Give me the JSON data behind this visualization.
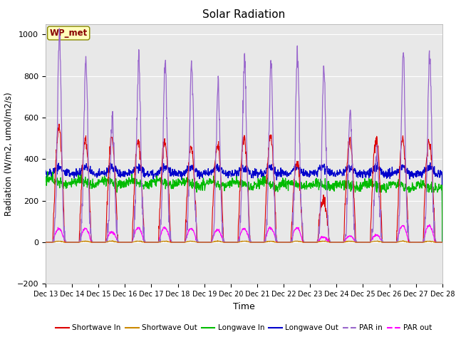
{
  "title": "Solar Radiation",
  "xlabel": "Time",
  "ylabel": "Radiation (W/m2, umol/m2/s)",
  "ylim": [
    -200,
    1050
  ],
  "xlim": [
    0,
    15
  ],
  "station_label": "WP_met",
  "x_tick_labels": [
    "Dec 13",
    "Dec 14",
    "Dec 15",
    "Dec 16",
    "Dec 17",
    "Dec 18",
    "Dec 19",
    "Dec 20",
    "Dec 21",
    "Dec 22",
    "Dec 23",
    "Dec 24",
    "Dec 25",
    "Dec 26",
    "Dec 27",
    "Dec 28"
  ],
  "background_color": "#e8e8e8",
  "sw_in_color": "#dd0000",
  "sw_out_color": "#cc8800",
  "lw_in_color": "#00bb00",
  "lw_out_color": "#0000cc",
  "par_in_color": "#9966cc",
  "par_out_color": "#ff00ff",
  "sw_in_peaks": [
    550,
    490,
    500,
    490,
    490,
    460,
    470,
    500,
    510,
    380,
    200,
    490,
    500,
    490
  ],
  "par_in_peaks": [
    1000,
    870,
    600,
    880,
    860,
    850,
    740,
    890,
    850,
    910,
    830,
    630,
    450,
    910
  ],
  "par_out_peaks": [
    65,
    65,
    50,
    70,
    70,
    65,
    60,
    65,
    70,
    70,
    25,
    30,
    35,
    80
  ],
  "n_days": 15,
  "pts_per_day": 96
}
